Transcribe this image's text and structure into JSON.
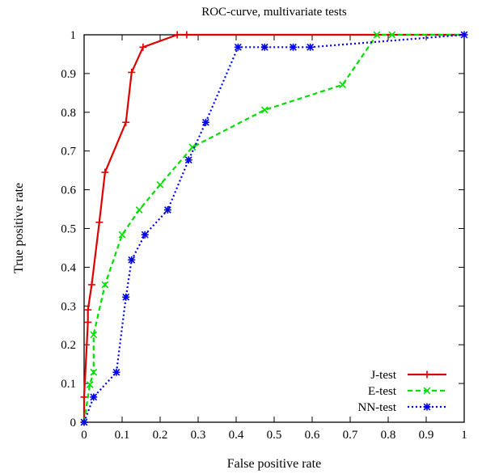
{
  "chart_data": {
    "type": "line",
    "title": "ROC-curve, multivariate tests",
    "xlabel": "False positive rate",
    "ylabel": "True positive rate",
    "xlim": [
      0,
      1
    ],
    "ylim": [
      0,
      1
    ],
    "x_ticks": [
      0,
      0.1,
      0.2,
      0.3,
      0.4,
      0.5,
      0.6,
      0.7,
      0.8,
      0.9,
      1
    ],
    "y_ticks": [
      0,
      0.1,
      0.2,
      0.3,
      0.4,
      0.5,
      0.6,
      0.7,
      0.8,
      0.9,
      1
    ],
    "x_tick_labels": [
      "0",
      "0.1",
      "0.2",
      "0.3",
      "0.4",
      "0.5",
      "0.6",
      "0.7",
      "0.8",
      "0.9",
      "1"
    ],
    "y_tick_labels": [
      "0",
      "0.1",
      "0.2",
      "0.3",
      "0.4",
      "0.5",
      "0.6",
      "0.7",
      "0.8",
      "0.9",
      "1"
    ],
    "grid": false,
    "legend_position": "bottom-right",
    "series": [
      {
        "name": "J-test",
        "color": "#e00000",
        "dash": "solid",
        "marker": "plus",
        "points": [
          [
            0,
            0
          ],
          [
            0,
            0.065
          ],
          [
            0.01,
            0.258
          ],
          [
            0.01,
            0.29
          ],
          [
            0.02,
            0.355
          ],
          [
            0.04,
            0.516
          ],
          [
            0.055,
            0.645
          ],
          [
            0.11,
            0.774
          ],
          [
            0.125,
            0.903
          ],
          [
            0.155,
            0.968
          ],
          [
            0.245,
            1.0
          ],
          [
            0.27,
            1.0
          ],
          [
            1.0,
            1.0
          ]
        ]
      },
      {
        "name": "E-test",
        "color": "#00dd00",
        "dash": "dashed",
        "marker": "cross",
        "points": [
          [
            0,
            0
          ],
          [
            0.015,
            0.097
          ],
          [
            0.025,
            0.129
          ],
          [
            0.025,
            0.226
          ],
          [
            0.055,
            0.355
          ],
          [
            0.1,
            0.484
          ],
          [
            0.145,
            0.548
          ],
          [
            0.2,
            0.613
          ],
          [
            0.285,
            0.71
          ],
          [
            0.475,
            0.806
          ],
          [
            0.68,
            0.871
          ],
          [
            0.77,
            1.0
          ],
          [
            0.81,
            1.0
          ],
          [
            1.0,
            1.0
          ]
        ]
      },
      {
        "name": "NN-test",
        "color": "#0000ee",
        "dash": "dotted",
        "marker": "star",
        "points": [
          [
            0,
            0
          ],
          [
            0.025,
            0.065
          ],
          [
            0.085,
            0.129
          ],
          [
            0.11,
            0.323
          ],
          [
            0.125,
            0.419
          ],
          [
            0.16,
            0.484
          ],
          [
            0.22,
            0.548
          ],
          [
            0.275,
            0.677
          ],
          [
            0.32,
            0.774
          ],
          [
            0.405,
            0.968
          ],
          [
            0.475,
            0.968
          ],
          [
            0.55,
            0.968
          ],
          [
            0.595,
            0.968
          ],
          [
            1.0,
            1.0
          ]
        ]
      }
    ]
  }
}
